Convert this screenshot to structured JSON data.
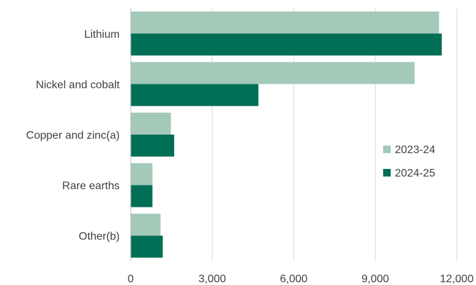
{
  "chart_data": {
    "type": "bar",
    "orientation": "horizontal",
    "categories": [
      "Lithium",
      "Nickel and cobalt",
      "Copper and zinc(a)",
      "Rare earths",
      "Other(b)"
    ],
    "series": [
      {
        "name": "2023-24",
        "color": "#a3c9b8",
        "values": [
          11350,
          10450,
          1480,
          800,
          1100
        ]
      },
      {
        "name": "2024-25",
        "color": "#006f55",
        "values": [
          11450,
          4700,
          1600,
          800,
          1180
        ]
      }
    ],
    "xlim": [
      0,
      12000
    ],
    "xticks": [
      "0",
      "3,000",
      "6,000",
      "9,000",
      "12,000"
    ],
    "grid": true,
    "legend_position": "right"
  }
}
